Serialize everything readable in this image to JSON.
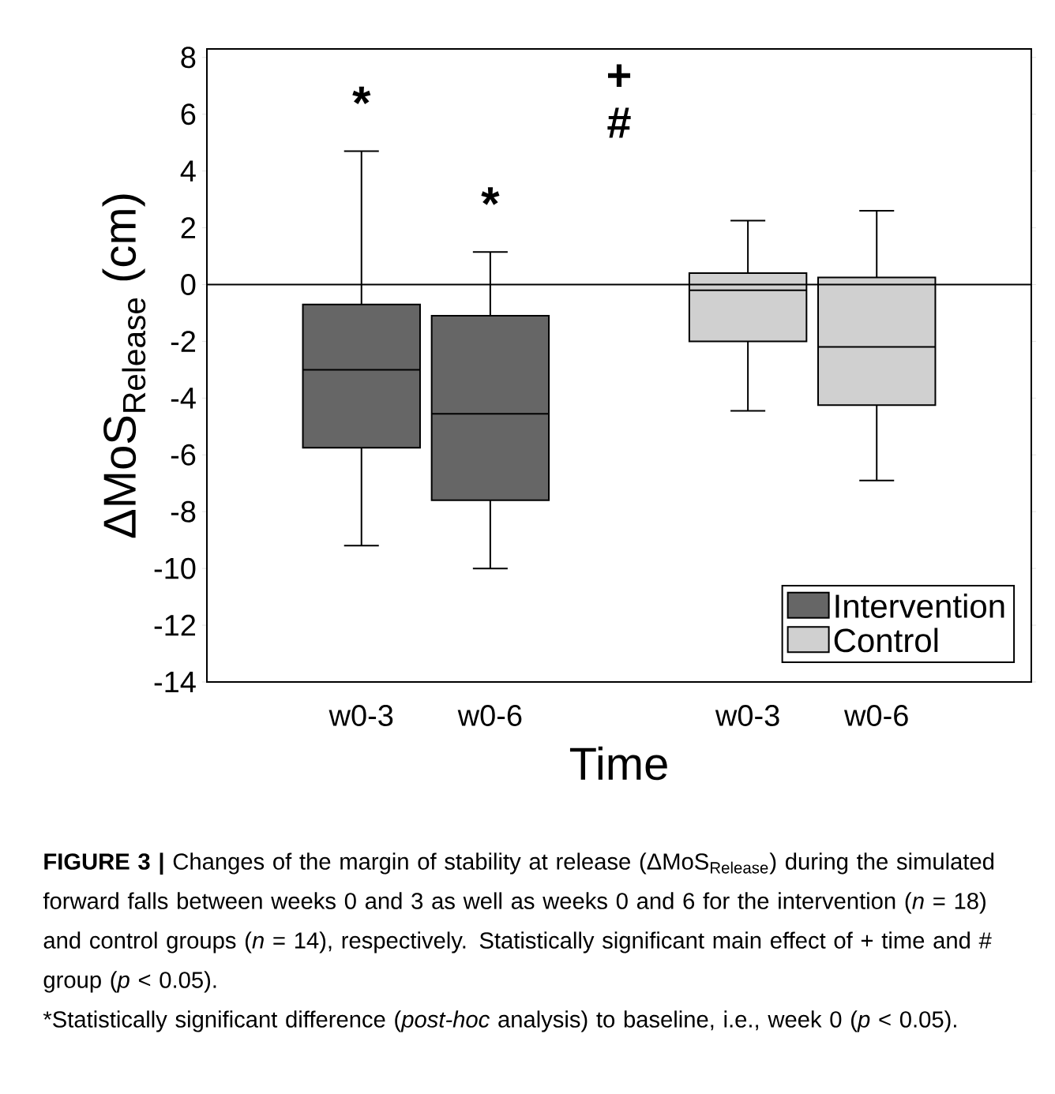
{
  "chart_data": {
    "type": "box",
    "categories": [
      "w0-3",
      "w0-6",
      null,
      "w0-3",
      "w0-6"
    ],
    "series": [
      {
        "name": "Intervention",
        "color": "#666666",
        "boxes": [
          {
            "low": -9.2,
            "q1": -5.75,
            "median": -3.0,
            "q3": -0.7,
            "high": 4.7
          },
          {
            "low": -10.0,
            "q1": -7.6,
            "median": -4.55,
            "q3": -1.1,
            "high": 1.15
          },
          null,
          null,
          null
        ]
      },
      {
        "name": "Control",
        "color": "#d0d0d0",
        "boxes": [
          null,
          null,
          null,
          {
            "low": -4.45,
            "q1": -2.0,
            "median": -0.2,
            "q3": 0.4,
            "high": 2.25
          },
          {
            "low": -6.9,
            "q1": -4.25,
            "median": -2.2,
            "q3": 0.25,
            "high": 2.6
          }
        ]
      }
    ],
    "ylim": [
      -14,
      8.3
    ],
    "yticks": [
      -14,
      -12,
      -10,
      -8,
      -6,
      -4,
      -2,
      0,
      2,
      4,
      6,
      8
    ],
    "xlabel": "Time",
    "ylabel": "ΔMoS$_{Release}$ (cm)",
    "ref_lines": [
      {
        "axis": "y",
        "value": 0
      }
    ],
    "legend": "bottom right",
    "annotations": [
      "*",
      "*",
      "+",
      "#",
      "**FIGURE 3 |** Changes of the margin of stability at release (ΔMoS$_{Release}$) during the simulated forward falls between weeks 0 and 3 as well as weeks 0 and 6 for the intervention (*n* = 18) and control groups (*n* = 14), respectively. Statistically significant main effect of + time and # group (*p* < 0.05).",
      "*Statistically significant difference (*post-hoc* analysis) to baseline, i.e., week 0 (*p* < 0.05)."
    ]
  }
}
